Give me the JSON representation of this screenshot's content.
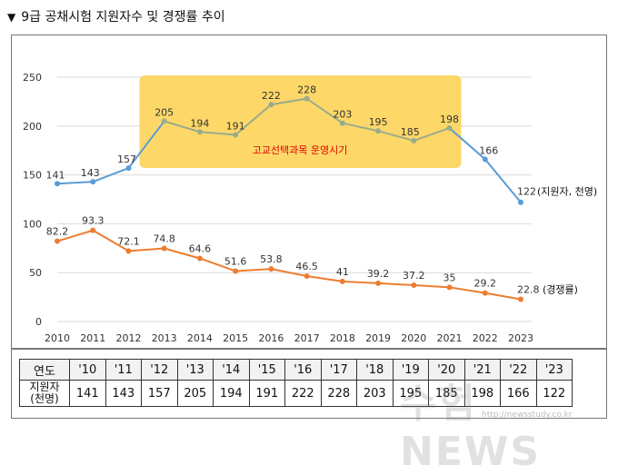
{
  "title": "9급 공채시험 지원자수 및 경쟁률 추이",
  "title_icon": "down-triangle-icon",
  "chart_data": {
    "type": "line",
    "x": [
      "2010",
      "2011",
      "2012",
      "2013",
      "2014",
      "2015",
      "2016",
      "2017",
      "2018",
      "2019",
      "2020",
      "2021",
      "2022",
      "2023"
    ],
    "ylim": [
      0,
      250
    ],
    "yticks": [
      "0",
      "50",
      "100",
      "150",
      "200",
      "250"
    ],
    "grid": true,
    "series": [
      {
        "key": "applicants",
        "values": [
          141,
          143,
          157,
          205,
          194,
          191,
          222,
          228,
          203,
          195,
          185,
          198,
          166,
          122
        ],
        "labels": [
          "141",
          "143",
          "157",
          "205",
          "194",
          "191",
          "222",
          "228",
          "203",
          "195",
          "185",
          "198",
          "166",
          "122"
        ],
        "end_label": "(지원자, 천명)",
        "color": "#5b9bd5",
        "highlight_color": "#9aab8c"
      },
      {
        "key": "competition",
        "values": [
          82.2,
          93.3,
          72.1,
          74.8,
          64.6,
          51.6,
          53.8,
          46.5,
          41,
          39.2,
          37.2,
          35,
          29.2,
          22.8
        ],
        "labels": [
          "82.2",
          "93.3",
          "72.1",
          "74.8",
          "64.6",
          "51.6",
          "53.8",
          "46.5",
          "41",
          "39.2",
          "37.2",
          "35",
          "29.2",
          "22.8"
        ],
        "end_label": "(경쟁률)",
        "color": "#ed7d31"
      }
    ],
    "annotation": {
      "text": "고교선택과목 운영시기",
      "from": "2012",
      "to": "2021",
      "fill": "#fdd868",
      "text_color": "#e00000"
    }
  },
  "table": {
    "row1_header": "연도",
    "row2_header": [
      "지원자",
      "(천명)"
    ],
    "years": [
      "'10",
      "'11",
      "'12",
      "'13",
      "'14",
      "'15",
      "'16",
      "'17",
      "'18",
      "'19",
      "'20",
      "'21",
      "'22",
      "'23"
    ],
    "values": [
      "141",
      "143",
      "157",
      "205",
      "194",
      "191",
      "222",
      "228",
      "203",
      "195",
      "185",
      "198",
      "166",
      "122"
    ]
  },
  "watermark": {
    "text": "수험NEWS",
    "url": "http://newsstudy.co.kr"
  }
}
